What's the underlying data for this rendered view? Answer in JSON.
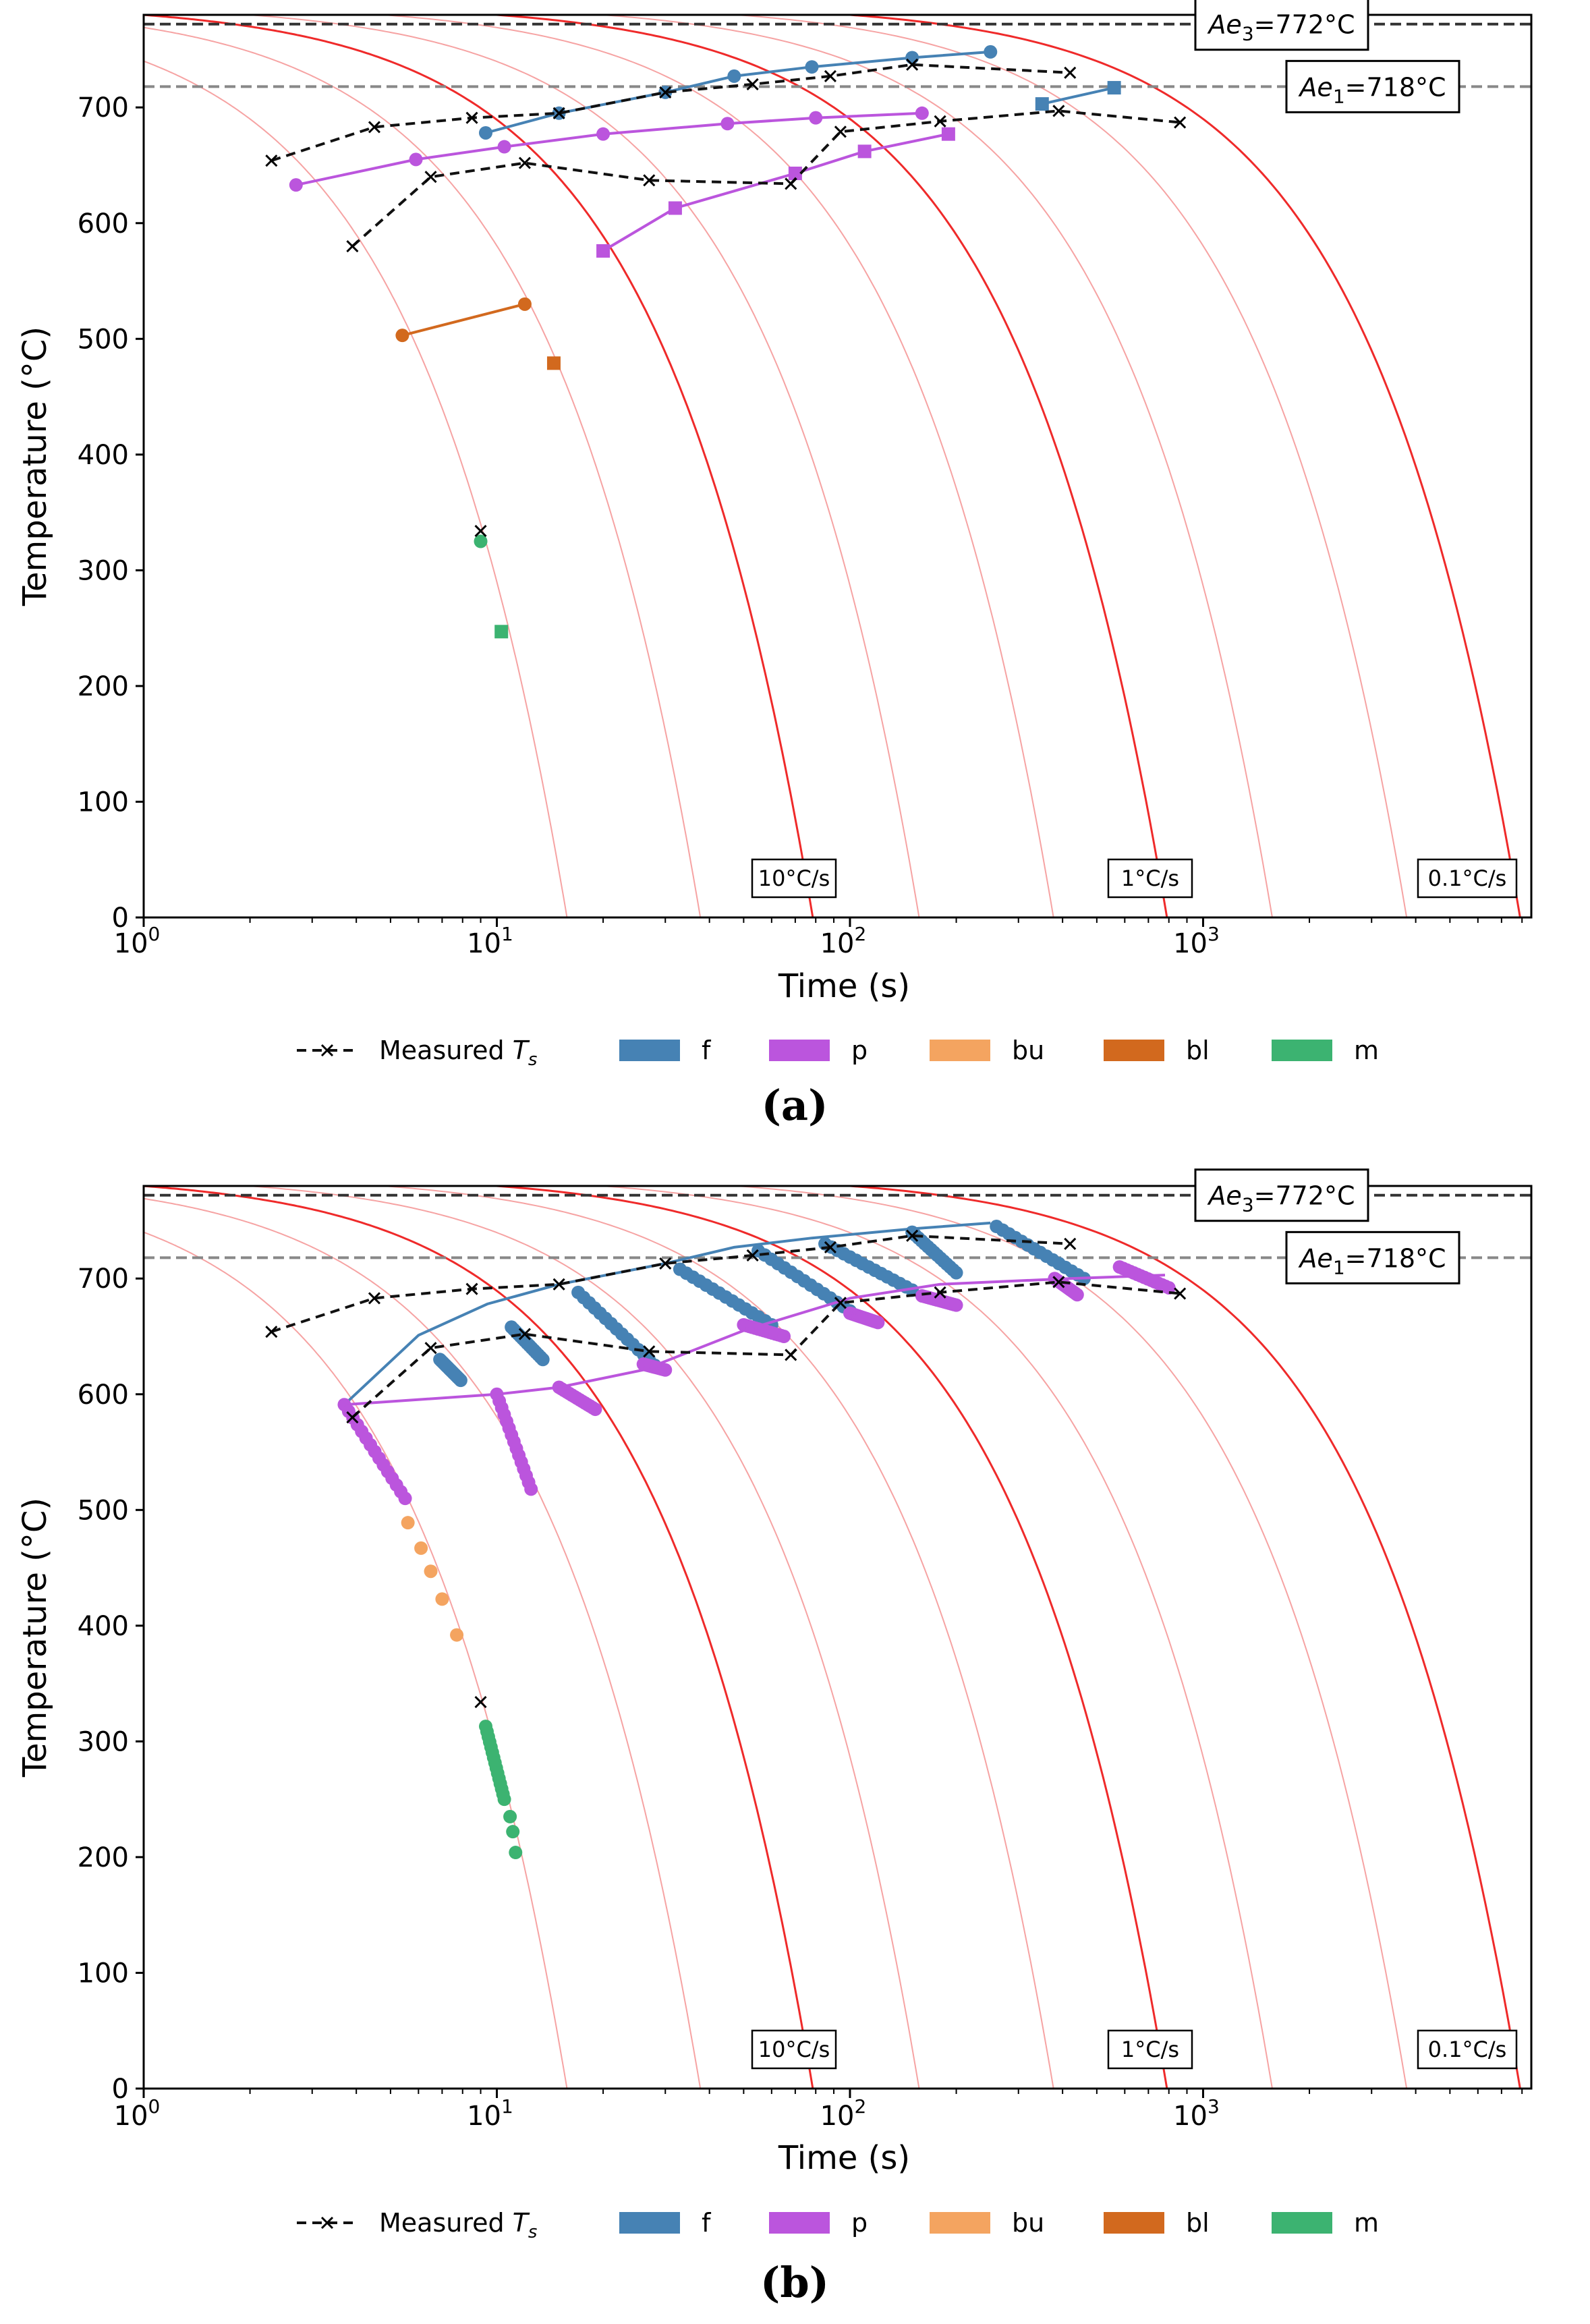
{
  "chart_data": [
    {
      "panel": "a",
      "caption": "(a)",
      "type": "scatter",
      "title": "",
      "xlabel": "Time (s)",
      "ylabel": "Temperature (°C)",
      "xscale": "log",
      "xlim": [
        1,
        8500
      ],
      "ylim": [
        0,
        780
      ],
      "xticks": [
        {
          "value": 1,
          "base": "10",
          "exp": "0"
        },
        {
          "value": 10,
          "base": "10",
          "exp": "1"
        },
        {
          "value": 100,
          "base": "10",
          "exp": "2"
        },
        {
          "value": 1000,
          "base": "10",
          "exp": "3"
        }
      ],
      "yticks": [
        0,
        100,
        200,
        300,
        400,
        500,
        600,
        700
      ],
      "hlines": [
        {
          "name": "Ae3",
          "y": 772,
          "color": "#333333",
          "label": "Ae",
          "sub": "3",
          "value_text": "=772°C"
        },
        {
          "name": "Ae1",
          "y": 718,
          "color": "#888888",
          "label": "Ae",
          "sub": "1",
          "value_text": "=718°C"
        }
      ],
      "cooling_curves": {
        "start_temperature": 790,
        "bold_t0": [
          78.5,
          790,
          7900
        ],
        "faint_t0": [
          15.8,
          37.7,
          157,
          377,
          1570,
          3770
        ],
        "rate_labels": [
          {
            "text": "10°C/s",
            "t": 70
          },
          {
            "text": "1°C/s",
            "t": 700
          },
          {
            "text": "0.1°C/s",
            "t": 7000
          }
        ]
      },
      "measured_Ts": {
        "start": [
          [
            2.3,
            654
          ],
          [
            4.5,
            683
          ],
          [
            8.5,
            691
          ],
          [
            15,
            695
          ],
          [
            30,
            713
          ],
          [
            53,
            720
          ],
          [
            88,
            727
          ],
          [
            150,
            737
          ],
          [
            420,
            730
          ]
        ],
        "finish": [
          [
            3.9,
            580
          ],
          [
            6.5,
            640
          ],
          [
            12,
            652
          ],
          [
            27,
            637
          ],
          [
            68,
            634
          ],
          [
            94,
            679
          ],
          [
            180,
            688
          ],
          [
            390,
            697
          ],
          [
            860,
            687
          ]
        ],
        "extra": [
          [
            9,
            334
          ]
        ]
      },
      "series": [
        {
          "name": "f",
          "color": "#4682b4",
          "start": [
            [
              9.3,
              678
            ],
            [
              15,
              695
            ],
            [
              30,
              713
            ],
            [
              47,
              727
            ],
            [
              78,
              735
            ],
            [
              150,
              743
            ],
            [
              250,
              748
            ]
          ],
          "finish": [
            [
              350,
              703
            ],
            [
              560,
              717
            ]
          ]
        },
        {
          "name": "p",
          "color": "#bb55dd",
          "start": [
            [
              2.7,
              633
            ],
            [
              5.9,
              655
            ],
            [
              10.5,
              666
            ],
            [
              20,
              677
            ],
            [
              45,
              686
            ],
            [
              80,
              691
            ],
            [
              160,
              695
            ]
          ],
          "finish": [
            [
              20,
              576
            ],
            [
              32,
              613
            ],
            [
              70,
              643
            ],
            [
              110,
              662
            ],
            [
              190,
              677
            ]
          ]
        },
        {
          "name": "bu",
          "color": "#f4a460",
          "start": [],
          "finish": []
        },
        {
          "name": "bl",
          "color": "#d2691e",
          "start": [
            [
              5.4,
              503
            ],
            [
              12,
              530
            ]
          ],
          "finish": [
            [
              14.5,
              479
            ]
          ]
        },
        {
          "name": "m",
          "color": "#3cb371",
          "start": [
            [
              9,
              325
            ]
          ],
          "finish": [
            [
              10.3,
              247
            ]
          ]
        }
      ],
      "legend": {
        "placement": "bottom",
        "entries": [
          {
            "label": "Measured",
            "sub": "s"
          },
          {
            "label": "f"
          },
          {
            "label": "p"
          },
          {
            "label": "bu"
          },
          {
            "label": "bl"
          },
          {
            "label": "m"
          }
        ]
      }
    },
    {
      "panel": "b",
      "caption": "(b)",
      "type": "scatter",
      "title": "",
      "xlabel": "Time (s)",
      "ylabel": "Temperature (°C)",
      "xscale": "log",
      "xlim": [
        1,
        8500
      ],
      "ylim": [
        0,
        780
      ],
      "xticks": [
        {
          "value": 1,
          "base": "10",
          "exp": "0"
        },
        {
          "value": 10,
          "base": "10",
          "exp": "1"
        },
        {
          "value": 100,
          "base": "10",
          "exp": "2"
        },
        {
          "value": 1000,
          "base": "10",
          "exp": "3"
        }
      ],
      "yticks": [
        0,
        100,
        200,
        300,
        400,
        500,
        600,
        700
      ],
      "hlines": [
        {
          "name": "Ae3",
          "y": 772,
          "color": "#333333",
          "label": "Ae",
          "sub": "3",
          "value_text": "=772°C"
        },
        {
          "name": "Ae1",
          "y": 718,
          "color": "#888888",
          "label": "Ae",
          "sub": "1",
          "value_text": "=718°C"
        }
      ],
      "cooling_curves": {
        "start_temperature": 790,
        "bold_t0": [
          78.5,
          790,
          7900
        ],
        "faint_t0": [
          15.8,
          37.7,
          157,
          377,
          1570,
          3770
        ],
        "rate_labels": [
          {
            "text": "10°C/s",
            "t": 70
          },
          {
            "text": "1°C/s",
            "t": 700
          },
          {
            "text": "0.1°C/s",
            "t": 7000
          }
        ]
      },
      "measured_Ts": {
        "start": [
          [
            2.3,
            654
          ],
          [
            4.5,
            683
          ],
          [
            8.5,
            691
          ],
          [
            15,
            695
          ],
          [
            30,
            713
          ],
          [
            53,
            720
          ],
          [
            88,
            727
          ],
          [
            150,
            737
          ],
          [
            420,
            730
          ]
        ],
        "finish": [
          [
            3.9,
            580
          ],
          [
            6.5,
            640
          ],
          [
            12,
            652
          ],
          [
            27,
            637
          ],
          [
            68,
            634
          ],
          [
            94,
            679
          ],
          [
            180,
            688
          ],
          [
            390,
            697
          ],
          [
            860,
            687
          ]
        ],
        "extra": [
          [
            9,
            334
          ]
        ]
      },
      "series": [
        {
          "name": "f",
          "color": "#4682b4",
          "line": [
            [
              3.7,
              591
            ],
            [
              6,
              651
            ],
            [
              9.4,
              678
            ],
            [
              15,
              695
            ],
            [
              30,
              713
            ],
            [
              47,
              727
            ],
            [
              78,
              735
            ],
            [
              150,
              743
            ],
            [
              250,
              748
            ]
          ],
          "segments": [
            [
              [
                6.9,
                630
              ],
              [
                7.9,
                612
              ]
            ],
            [
              [
                11,
                658
              ],
              [
                13.5,
                630
              ]
            ],
            [
              [
                17,
                688
              ],
              [
                28,
                625
              ]
            ],
            [
              [
                33,
                708
              ],
              [
                60,
                660
              ]
            ],
            [
              [
                55,
                724
              ],
              [
                100,
                672
              ]
            ],
            [
              [
                85,
                730
              ],
              [
                150,
                690
              ]
            ],
            [
              [
                150,
                740
              ],
              [
                200,
                705
              ]
            ],
            [
              [
                260,
                745
              ],
              [
                460,
                700
              ]
            ]
          ]
        },
        {
          "name": "p",
          "color": "#bb55dd",
          "line": [
            [
              3.7,
              591
            ],
            [
              10,
              600
            ],
            [
              15,
              606
            ],
            [
              26,
              621
            ],
            [
              50,
              655
            ],
            [
              100,
              683
            ],
            [
              180,
              695
            ],
            [
              420,
              700
            ],
            [
              780,
              703
            ]
          ],
          "segments": [
            [
              [
                3.7,
                591
              ],
              [
                5.5,
                510
              ]
            ],
            [
              [
                10,
                600
              ],
              [
                12.5,
                518
              ]
            ],
            [
              [
                15,
                606
              ],
              [
                19,
                587
              ]
            ],
            [
              [
                26,
                626
              ],
              [
                30,
                621
              ]
            ],
            [
              [
                50,
                660
              ],
              [
                65,
                650
              ]
            ],
            [
              [
                100,
                670
              ],
              [
                120,
                662
              ]
            ],
            [
              [
                160,
                685
              ],
              [
                200,
                677
              ]
            ],
            [
              [
                380,
                700
              ],
              [
                440,
                686
              ]
            ],
            [
              [
                580,
                710
              ],
              [
                800,
                692
              ]
            ]
          ]
        },
        {
          "name": "bu",
          "color": "#f4a460",
          "points": [
            [
              5.6,
              489
            ],
            [
              6.1,
              467
            ],
            [
              6.5,
              447
            ],
            [
              7,
              423
            ],
            [
              7.7,
              392
            ]
          ]
        },
        {
          "name": "bl",
          "color": "#d2691e",
          "points": []
        },
        {
          "name": "m",
          "color": "#3cb371",
          "segments": [
            [
              [
                9.3,
                313
              ],
              [
                10.5,
                250
              ]
            ]
          ],
          "points": [
            [
              10.9,
              235
            ],
            [
              11.1,
              222
            ],
            [
              11.3,
              204
            ]
          ]
        }
      ],
      "legend": {
        "placement": "bottom",
        "entries": [
          {
            "label": "Measured",
            "sub": "s"
          },
          {
            "label": "f"
          },
          {
            "label": "p"
          },
          {
            "label": "bu"
          },
          {
            "label": "bl"
          },
          {
            "label": "m"
          }
        ]
      }
    }
  ]
}
